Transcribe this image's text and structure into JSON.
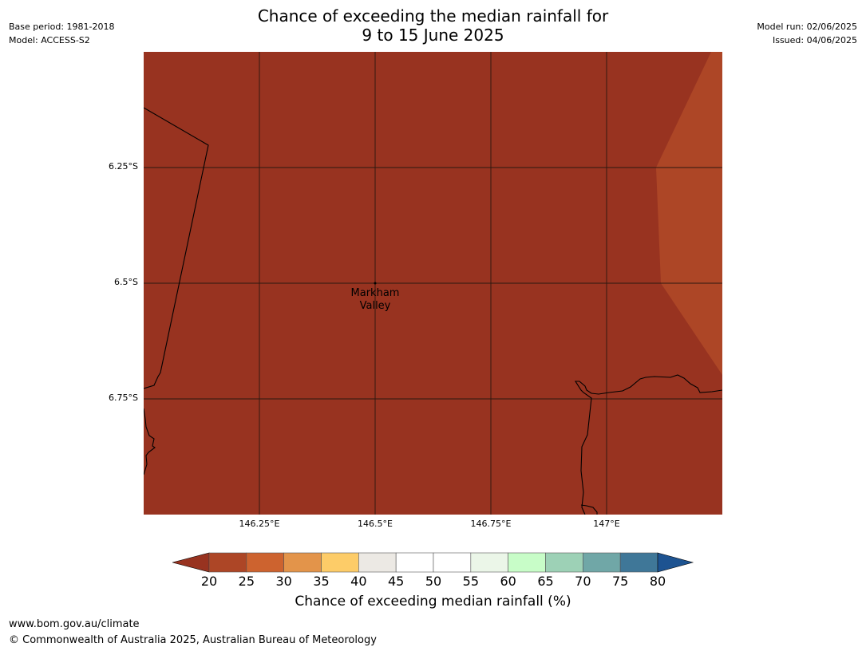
{
  "title": {
    "line1": "Chance of exceeding the median rainfall for",
    "line2": "9 to 15 June 2025"
  },
  "meta_left": {
    "base_period": "Base period: 1981-2018",
    "model": "Model: ACCESS-S2"
  },
  "meta_right": {
    "model_run": "Model run: 02/06/2025",
    "issued": "Issued: 04/06/2025"
  },
  "map": {
    "lat_labels": [
      "6.25°S",
      "6.5°S",
      "6.75°S"
    ],
    "lon_labels": [
      "146.25°E",
      "146.5°E",
      "146.75°E",
      "147°E"
    ],
    "place": {
      "line1": "Markham",
      "line2": "Valley"
    },
    "colors": {
      "below_20": "#983320",
      "20_25": "#ad4626",
      "border": "#000000",
      "gridline": "#2a1810"
    }
  },
  "colorbar": {
    "ticks": [
      "20",
      "25",
      "30",
      "35",
      "40",
      "45",
      "50",
      "55",
      "60",
      "65",
      "70",
      "75",
      "80"
    ],
    "colors": [
      "#ad4626",
      "#cd632f",
      "#e3944a",
      "#fdcc68",
      "#ece9e4",
      "#ffffff",
      "#ffffff",
      "#ebf6e8",
      "#c8fdc8",
      "#9dd1b6",
      "#70a7a7",
      "#3f7798"
    ],
    "under_color": "#983320",
    "over_color": "#1d5391",
    "label": "Chance of exceeding median rainfall (%)"
  },
  "footer": {
    "url": "www.bom.gov.au/climate",
    "copyright": "© Commonwealth of Australia 2025, Australian Bureau of Meteorology"
  }
}
